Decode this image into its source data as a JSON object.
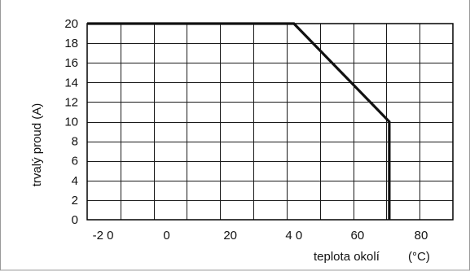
{
  "chart_data": {
    "type": "line",
    "title": "",
    "xlabel": "teplota okolí",
    "xlabel_unit": "(°C)",
    "ylabel": "trvalý proud (A)",
    "xlim": [
      -25,
      90
    ],
    "ylim": [
      0,
      20
    ],
    "grid": true,
    "x_ticks": [
      -20,
      0,
      20,
      40,
      60,
      80
    ],
    "x_tick_labels": [
      "-2 0",
      "0",
      "20",
      "4 0",
      "60",
      "80"
    ],
    "y_ticks": [
      0,
      2,
      4,
      6,
      8,
      10,
      12,
      14,
      16,
      18,
      20
    ],
    "y_tick_labels": [
      "0",
      "2",
      "4",
      "6",
      "8",
      "10",
      "12",
      "14",
      "16",
      "18",
      "20"
    ],
    "series": [
      {
        "x": [
          -25,
          40,
          70,
          70
        ],
        "y": [
          20,
          20,
          10,
          0
        ],
        "color": "#111111"
      }
    ]
  }
}
